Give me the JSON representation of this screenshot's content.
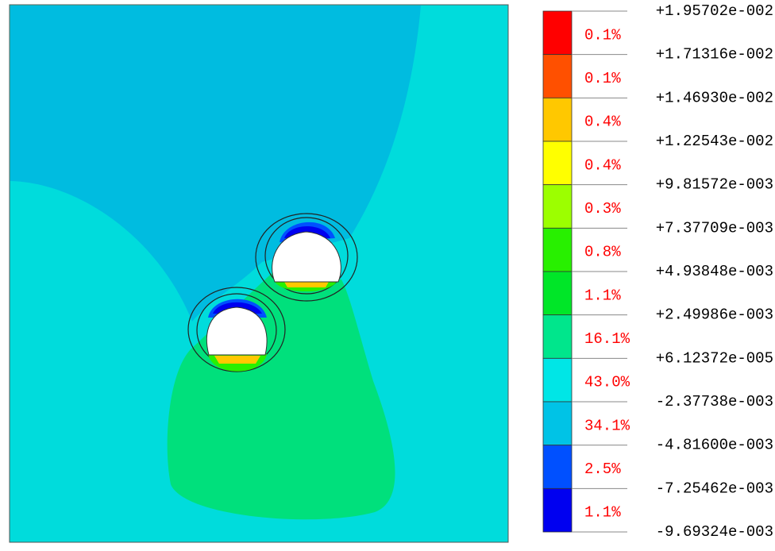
{
  "legend": {
    "levels": [
      "+1.95702e-002",
      "+1.71316e-002",
      "+1.46930e-002",
      "+1.22543e-002",
      "+9.81572e-003",
      "+7.37709e-003",
      "+4.93848e-003",
      "+2.49986e-003",
      "+6.12372e-005",
      "-2.37738e-003",
      "-4.81600e-003",
      "-7.25462e-003",
      "-9.69324e-003"
    ],
    "bands": [
      {
        "percent": "0.1%",
        "color": "#ff0000"
      },
      {
        "percent": "0.1%",
        "color": "#ff5000"
      },
      {
        "percent": "0.4%",
        "color": "#ffc800"
      },
      {
        "percent": "0.4%",
        "color": "#ffff00"
      },
      {
        "percent": "0.3%",
        "color": "#9cff00"
      },
      {
        "percent": "0.8%",
        "color": "#28f000"
      },
      {
        "percent": "1.1%",
        "color": "#00e628"
      },
      {
        "percent": "16.1%",
        "color": "#00e68c"
      },
      {
        "percent": "43.0%",
        "color": "#00e6e6"
      },
      {
        "percent": "34.1%",
        "color": "#00c3e6"
      },
      {
        "percent": "2.5%",
        "color": "#0050ff"
      },
      {
        "percent": "1.1%",
        "color": "#0000f0"
      }
    ]
  }
}
